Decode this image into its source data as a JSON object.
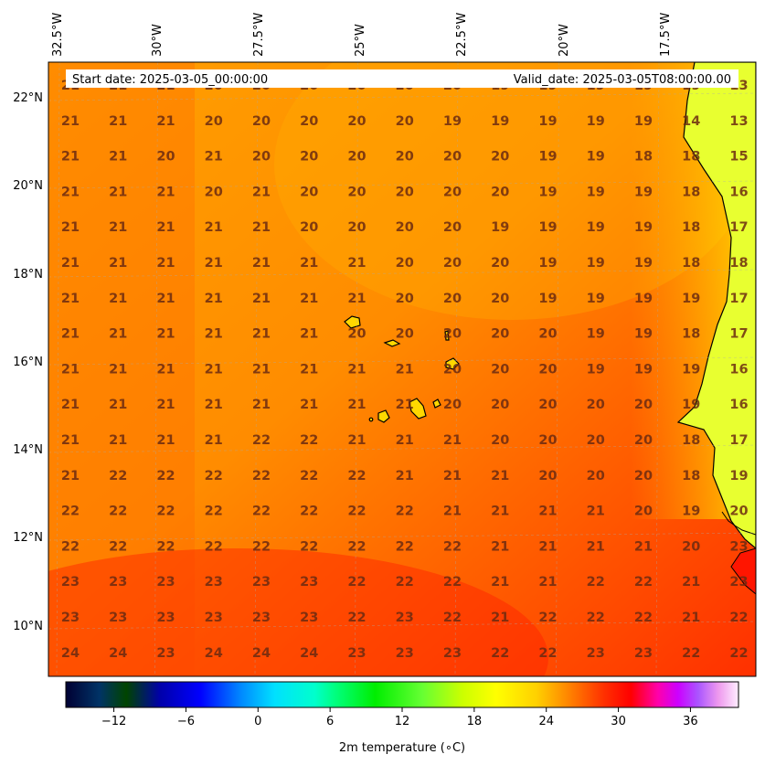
{
  "header": {
    "start_date": "Start date: 2025-03-05_00:00:00",
    "valid_date": "Valid_date: 2025-03-05T08:00:00.00"
  },
  "axes": {
    "lon_labels": [
      "32.5°W",
      "30°W",
      "27.5°W",
      "25°W",
      "22.5°W",
      "20°W",
      "17.5°W"
    ],
    "lat_labels": [
      "22°N",
      "20°N",
      "18°N",
      "16°N",
      "14°N",
      "12°N",
      "10°N"
    ]
  },
  "colorbar": {
    "label": "2m temperature (∘C)",
    "tick_labels": [
      "−12",
      "−6",
      "0",
      "6",
      "12",
      "18",
      "24",
      "30",
      "36"
    ],
    "range": [
      -16,
      40
    ]
  },
  "map": {
    "temperature_grid": [
      [
        "21",
        "21",
        "21",
        "20",
        "20",
        "20",
        "20",
        "20",
        "20",
        "19",
        "19",
        "19",
        "19",
        "19",
        "13"
      ],
      [
        "21",
        "21",
        "21",
        "20",
        "20",
        "20",
        "20",
        "20",
        "19",
        "19",
        "19",
        "19",
        "19",
        "14",
        "13"
      ],
      [
        "21",
        "21",
        "20",
        "21",
        "20",
        "20",
        "20",
        "20",
        "20",
        "20",
        "19",
        "19",
        "18",
        "18",
        "15"
      ],
      [
        "21",
        "21",
        "21",
        "20",
        "21",
        "20",
        "20",
        "20",
        "20",
        "20",
        "19",
        "19",
        "19",
        "18",
        "16"
      ],
      [
        "21",
        "21",
        "21",
        "21",
        "21",
        "20",
        "20",
        "20",
        "20",
        "19",
        "19",
        "19",
        "19",
        "18",
        "17"
      ],
      [
        "21",
        "21",
        "21",
        "21",
        "21",
        "21",
        "21",
        "20",
        "20",
        "20",
        "19",
        "19",
        "19",
        "18",
        "18"
      ],
      [
        "21",
        "21",
        "21",
        "21",
        "21",
        "21",
        "21",
        "20",
        "20",
        "20",
        "19",
        "19",
        "19",
        "19",
        "17"
      ],
      [
        "21",
        "21",
        "21",
        "21",
        "21",
        "21",
        "20",
        "20",
        "20",
        "20",
        "20",
        "19",
        "19",
        "18",
        "17"
      ],
      [
        "21",
        "21",
        "21",
        "21",
        "21",
        "21",
        "21",
        "21",
        "20",
        "20",
        "20",
        "19",
        "19",
        "19",
        "16"
      ],
      [
        "21",
        "21",
        "21",
        "21",
        "21",
        "21",
        "21",
        "21",
        "20",
        "20",
        "20",
        "20",
        "20",
        "19",
        "16"
      ],
      [
        "21",
        "21",
        "21",
        "21",
        "22",
        "22",
        "21",
        "21",
        "21",
        "20",
        "20",
        "20",
        "20",
        "18",
        "17"
      ],
      [
        "21",
        "22",
        "22",
        "22",
        "22",
        "22",
        "22",
        "21",
        "21",
        "21",
        "20",
        "20",
        "20",
        "18",
        "19"
      ],
      [
        "22",
        "22",
        "22",
        "22",
        "22",
        "22",
        "22",
        "22",
        "21",
        "21",
        "21",
        "21",
        "20",
        "19",
        "20"
      ],
      [
        "22",
        "22",
        "22",
        "22",
        "22",
        "22",
        "22",
        "22",
        "22",
        "21",
        "21",
        "21",
        "21",
        "20",
        "23"
      ],
      [
        "23",
        "23",
        "23",
        "23",
        "23",
        "23",
        "22",
        "22",
        "22",
        "21",
        "21",
        "22",
        "22",
        "21",
        "23"
      ],
      [
        "23",
        "23",
        "23",
        "23",
        "23",
        "23",
        "22",
        "23",
        "22",
        "21",
        "22",
        "22",
        "22",
        "21",
        "22"
      ],
      [
        "24",
        "24",
        "23",
        "24",
        "24",
        "24",
        "23",
        "23",
        "23",
        "22",
        "22",
        "23",
        "23",
        "22",
        "22"
      ]
    ]
  }
}
